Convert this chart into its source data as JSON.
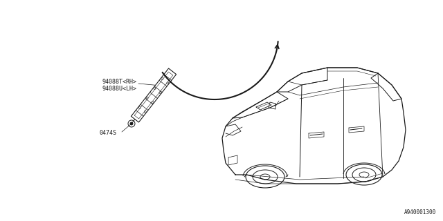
{
  "bg_color": "#ffffff",
  "line_color": "#1a1a1a",
  "part_label_1": "94088T<RH>",
  "part_label_2": "94088U<LH>",
  "part_label_3": "0474S",
  "diagram_id": "A940001300",
  "fig_width": 6.4,
  "fig_height": 3.2,
  "dpi": 100,
  "label_fontsize": 6.0,
  "id_fontsize": 5.5
}
